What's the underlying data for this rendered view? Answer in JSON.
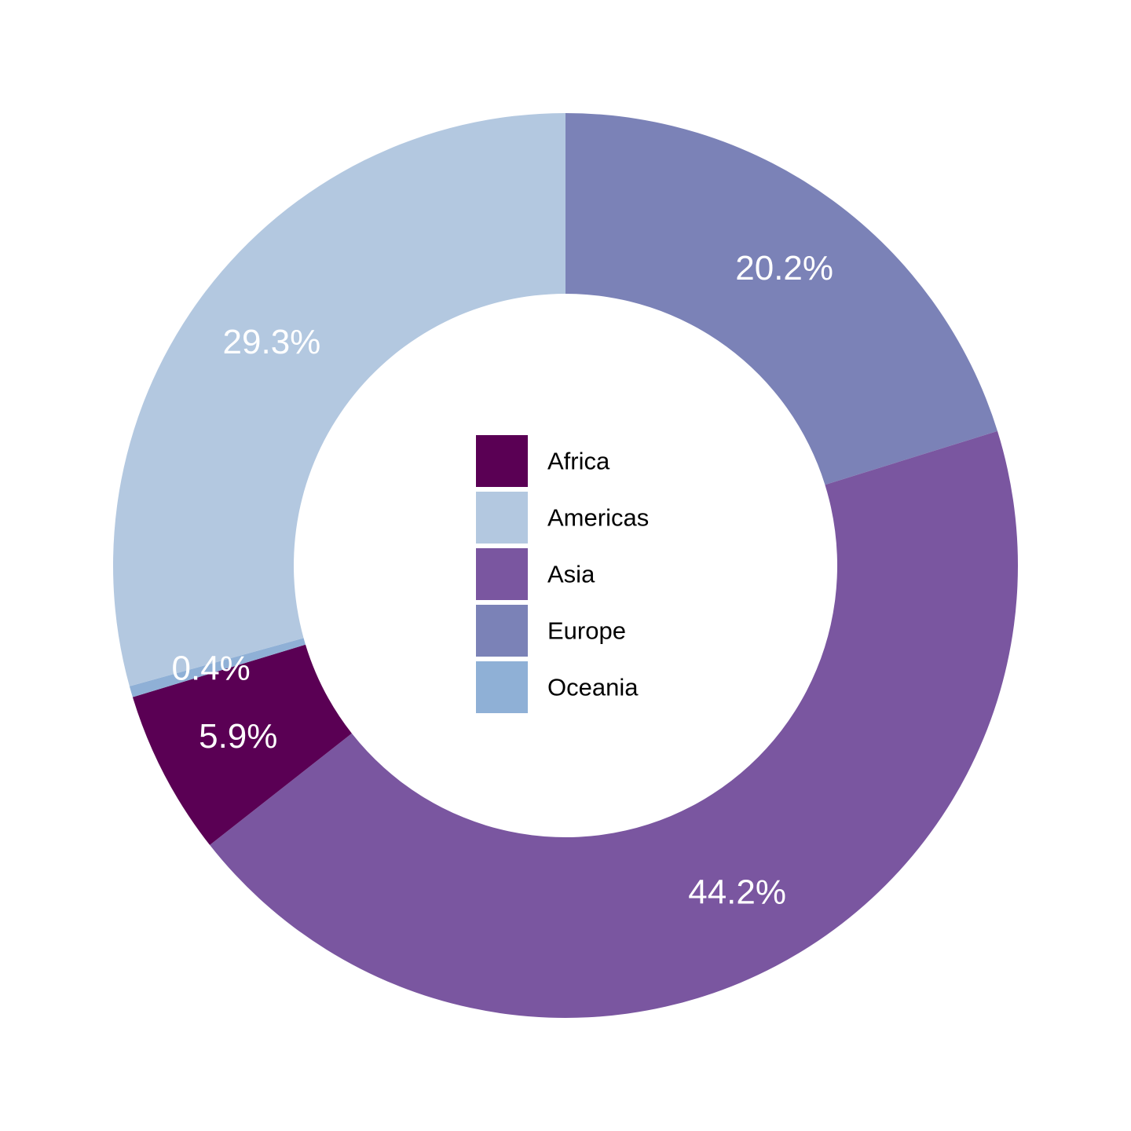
{
  "chart_data": {
    "type": "pie",
    "variant": "donut",
    "title": "",
    "categories": [
      "Africa",
      "Americas",
      "Asia",
      "Europe",
      "Oceania"
    ],
    "values": [
      5.9,
      29.3,
      44.2,
      20.2,
      0.4
    ],
    "value_labels": [
      "5.9%",
      "29.3%",
      "44.2%",
      "20.2%",
      "0.4%"
    ],
    "colors": [
      "#5a0054",
      "#b3c8e0",
      "#7a56a0",
      "#7b82b7",
      "#8fb0d6"
    ],
    "legend": {
      "placement": "center",
      "entries": [
        "Africa",
        "Americas",
        "Asia",
        "Europe",
        "Oceania"
      ]
    },
    "label_color": "#ffffff",
    "background": "#ffffff"
  }
}
